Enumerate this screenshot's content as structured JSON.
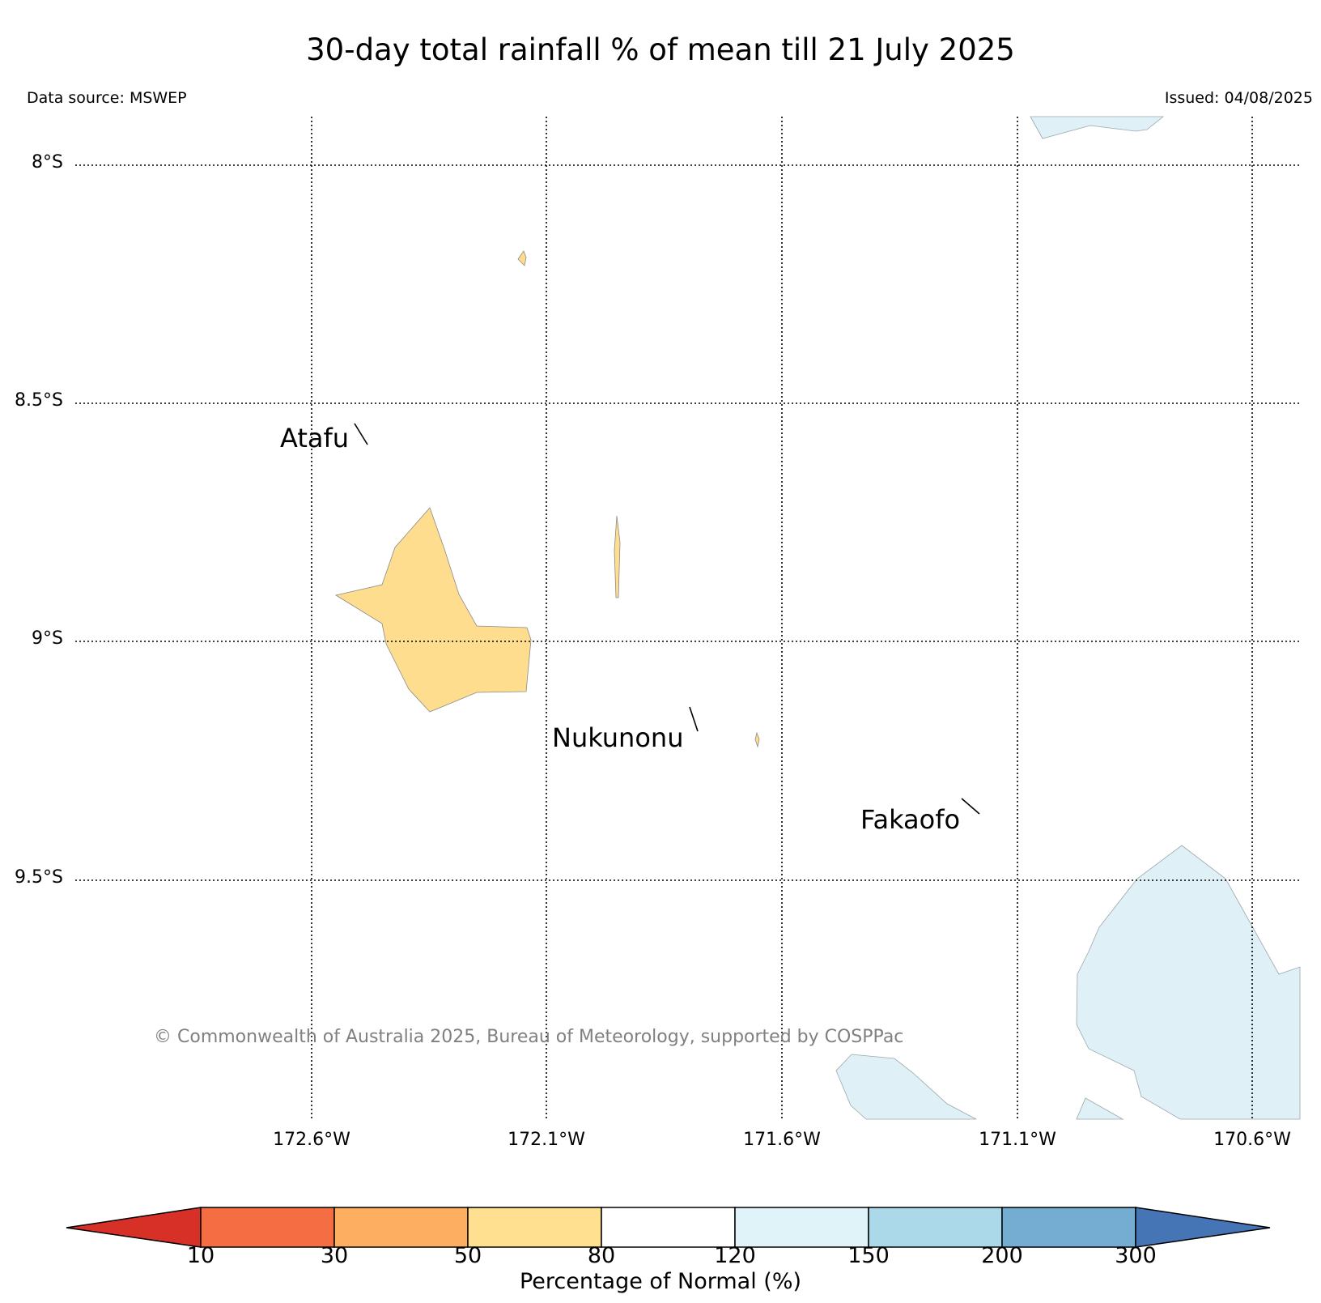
{
  "title": "30-day total rainfall % of mean till 21 July 2025",
  "data_source": "Data source: MSWEP",
  "issued": "Issued: 04/08/2025",
  "map": {
    "lat_labels": [
      "8°S",
      "8.5°S",
      "9°S",
      "9.5°S"
    ],
    "lon_labels": [
      "172.6°W",
      "172.1°W",
      "171.6°W",
      "171.1°W",
      "170.6°W"
    ],
    "gridlines": "dotted",
    "places": [
      "Atafu",
      "Nukunonu",
      "Fakaofo"
    ],
    "copyright": "© Commonwealth of Australia 2025, Bureau of Meteorology, supported by COSPPac",
    "regions": [
      {
        "category": "50–80",
        "color": "#fedd8f",
        "location": "west of 172.1°W, near 9°S"
      },
      {
        "category": "120–150",
        "color": "#dff1f7",
        "location": "north-east corner and south-east"
      }
    ]
  },
  "colorbar": {
    "label": "Percentage of Normal (%)",
    "ticks": [
      "10",
      "30",
      "50",
      "80",
      "120",
      "150",
      "200",
      "300"
    ],
    "colors": [
      "#d73027",
      "#f46d43",
      "#fdae61",
      "#fee090",
      "#ffffff",
      "#e0f3f8",
      "#abd9e9",
      "#74add1",
      "#4575b4"
    ]
  }
}
